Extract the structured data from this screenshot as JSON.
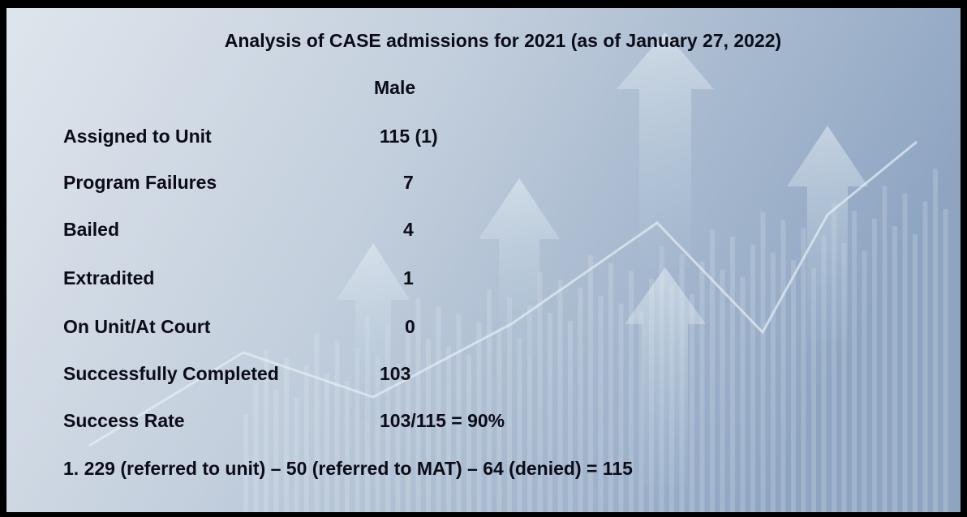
{
  "title": "Analysis of CASE admissions for 2021 (as of January 27, 2022)",
  "column_header": "Male",
  "rows": [
    {
      "label": "Assigned to Unit",
      "value": "115 (1)"
    },
    {
      "label": "Program Failures",
      "value": 7
    },
    {
      "label": "Bailed",
      "value": 4
    },
    {
      "label": "Extradited",
      "value": 1
    },
    {
      "label": "On Unit/At Court",
      "value": 0
    },
    {
      "label": "Successfully Completed",
      "value": 103
    },
    {
      "label": "Success Rate",
      "value": "103/115 = 90%"
    }
  ],
  "footnote": "1. 229 (referred to unit) – 50 (referred to MAT) – 64 (denied) = 115"
}
